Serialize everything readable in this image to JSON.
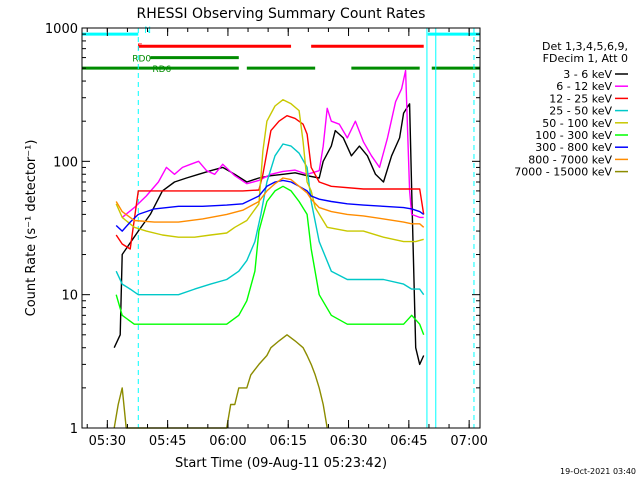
{
  "chart_data": {
    "type": "line",
    "title": "RHESSI Observing Summary Count Rates",
    "xlabel": "Start Time (09-Aug-11 05:23:42)",
    "ylabel": "Count Rate (s⁻¹ detector⁻¹)",
    "y_scale": "log",
    "ylim": [
      1,
      1000
    ],
    "xlim_minutes": [
      0,
      99
    ],
    "x_ticks": [
      {
        "t": 6.3,
        "label": "05:30"
      },
      {
        "t": 21.3,
        "label": "05:45"
      },
      {
        "t": 36.3,
        "label": "06:00"
      },
      {
        "t": 51.3,
        "label": "06:15"
      },
      {
        "t": 66.3,
        "label": "06:30"
      },
      {
        "t": 81.3,
        "label": "06:45"
      },
      {
        "t": 96.3,
        "label": "07:00"
      }
    ],
    "y_ticks": [
      {
        "v": 1,
        "label": "1"
      },
      {
        "v": 10,
        "label": "10"
      },
      {
        "v": 100,
        "label": "100"
      },
      {
        "v": 1000,
        "label": "1000"
      }
    ],
    "legend_header": [
      "Det 1,3,4,5,6,9,",
      "FDecim 1, Att 0"
    ],
    "legend_placement": "right",
    "series": [
      {
        "name": "3 - 6 keV",
        "color": "#000000",
        "points": [
          [
            8,
            4
          ],
          [
            9.5,
            5
          ],
          [
            10,
            20
          ],
          [
            14,
            30
          ],
          [
            17,
            40
          ],
          [
            20,
            60
          ],
          [
            23,
            70
          ],
          [
            26,
            75
          ],
          [
            29,
            80
          ],
          [
            32,
            85
          ],
          [
            35,
            90
          ],
          [
            38,
            80
          ],
          [
            41,
            70
          ],
          [
            44,
            75
          ],
          [
            47,
            78
          ],
          [
            50,
            80
          ],
          [
            53,
            82
          ],
          [
            56,
            78
          ],
          [
            59,
            75
          ],
          [
            60,
            100
          ],
          [
            62,
            130
          ],
          [
            63,
            170
          ],
          [
            65,
            150
          ],
          [
            67,
            110
          ],
          [
            69,
            130
          ],
          [
            71,
            110
          ],
          [
            73,
            80
          ],
          [
            75,
            70
          ],
          [
            77,
            110
          ],
          [
            79,
            150
          ],
          [
            80,
            230
          ],
          [
            81.5,
            270
          ],
          [
            82,
            60
          ],
          [
            83,
            4
          ],
          [
            84,
            3
          ],
          [
            85,
            3.5
          ]
        ]
      },
      {
        "name": "6 - 12 keV",
        "color": "#ff00ff",
        "points": [
          [
            10,
            38
          ],
          [
            13,
            45
          ],
          [
            16,
            55
          ],
          [
            19,
            70
          ],
          [
            21,
            90
          ],
          [
            23,
            80
          ],
          [
            25,
            90
          ],
          [
            27,
            95
          ],
          [
            29,
            100
          ],
          [
            31,
            85
          ],
          [
            33,
            80
          ],
          [
            35,
            95
          ],
          [
            38,
            78
          ],
          [
            41,
            68
          ],
          [
            44,
            72
          ],
          [
            47,
            80
          ],
          [
            50,
            84
          ],
          [
            53,
            86
          ],
          [
            56,
            80
          ],
          [
            59,
            85
          ],
          [
            60,
            130
          ],
          [
            61,
            250
          ],
          [
            62,
            200
          ],
          [
            64,
            190
          ],
          [
            66,
            150
          ],
          [
            68,
            200
          ],
          [
            70,
            140
          ],
          [
            72,
            110
          ],
          [
            74,
            90
          ],
          [
            76,
            150
          ],
          [
            78,
            280
          ],
          [
            79.5,
            350
          ],
          [
            80.5,
            480
          ],
          [
            81.5,
            60
          ],
          [
            82,
            40
          ],
          [
            84,
            38
          ],
          [
            85,
            38
          ]
        ]
      },
      {
        "name": "12 - 25 keV",
        "color": "#ff0000",
        "points": [
          [
            8.5,
            28
          ],
          [
            10,
            24
          ],
          [
            12,
            22
          ],
          [
            14,
            60
          ],
          [
            20,
            60
          ],
          [
            30,
            60
          ],
          [
            40,
            60
          ],
          [
            44,
            61
          ],
          [
            45,
            80
          ],
          [
            47,
            170
          ],
          [
            49,
            200
          ],
          [
            51,
            220
          ],
          [
            53,
            210
          ],
          [
            55,
            190
          ],
          [
            56,
            160
          ],
          [
            57,
            90
          ],
          [
            59,
            70
          ],
          [
            62,
            65
          ],
          [
            70,
            62
          ],
          [
            80,
            62
          ],
          [
            82,
            62
          ],
          [
            84,
            62
          ],
          [
            85,
            40
          ]
        ]
      },
      {
        "name": "25 - 50 keV",
        "color": "#00c8c8",
        "points": [
          [
            8.5,
            15
          ],
          [
            10,
            12
          ],
          [
            12,
            11
          ],
          [
            14,
            10
          ],
          [
            18,
            10
          ],
          [
            24,
            10
          ],
          [
            28,
            11
          ],
          [
            32,
            12
          ],
          [
            36,
            13
          ],
          [
            39,
            15
          ],
          [
            41,
            18
          ],
          [
            43,
            25
          ],
          [
            44.5,
            40
          ],
          [
            46,
            70
          ],
          [
            48,
            110
          ],
          [
            50,
            135
          ],
          [
            52,
            130
          ],
          [
            54,
            115
          ],
          [
            56,
            90
          ],
          [
            57,
            50
          ],
          [
            59,
            25
          ],
          [
            62,
            15
          ],
          [
            66,
            13
          ],
          [
            70,
            13
          ],
          [
            75,
            13
          ],
          [
            80,
            12
          ],
          [
            82,
            11
          ],
          [
            84,
            11
          ],
          [
            85,
            10
          ]
        ]
      },
      {
        "name": "50 - 100 keV",
        "color": "#c8c800",
        "points": [
          [
            8.5,
            48
          ],
          [
            10,
            38
          ],
          [
            13,
            32
          ],
          [
            16,
            30
          ],
          [
            20,
            28
          ],
          [
            24,
            27
          ],
          [
            28,
            27
          ],
          [
            32,
            28
          ],
          [
            36,
            29
          ],
          [
            38,
            32
          ],
          [
            41,
            36
          ],
          [
            44,
            48
          ],
          [
            45,
            120
          ],
          [
            46,
            200
          ],
          [
            48,
            260
          ],
          [
            50,
            290
          ],
          [
            52,
            270
          ],
          [
            54,
            240
          ],
          [
            55,
            140
          ],
          [
            56,
            70
          ],
          [
            57,
            60
          ],
          [
            58,
            45
          ],
          [
            61,
            32
          ],
          [
            66,
            30
          ],
          [
            70,
            30
          ],
          [
            75,
            27
          ],
          [
            80,
            25
          ],
          [
            83,
            25
          ],
          [
            85,
            26
          ]
        ]
      },
      {
        "name": "100 - 300 keV",
        "color": "#00ff00",
        "points": [
          [
            8.5,
            10
          ],
          [
            10,
            7
          ],
          [
            13,
            6
          ],
          [
            18,
            6
          ],
          [
            24,
            6
          ],
          [
            30,
            6
          ],
          [
            36,
            6
          ],
          [
            39,
            7
          ],
          [
            41,
            9
          ],
          [
            43,
            15
          ],
          [
            44,
            30
          ],
          [
            46,
            50
          ],
          [
            48,
            60
          ],
          [
            50,
            65
          ],
          [
            52,
            60
          ],
          [
            54,
            50
          ],
          [
            56,
            40
          ],
          [
            57,
            22
          ],
          [
            59,
            10
          ],
          [
            62,
            7
          ],
          [
            66,
            6
          ],
          [
            70,
            6
          ],
          [
            75,
            6
          ],
          [
            80,
            6
          ],
          [
            82,
            7
          ],
          [
            84,
            6
          ],
          [
            85,
            5
          ]
        ]
      },
      {
        "name": "300 - 800 keV",
        "color": "#0000ff",
        "points": [
          [
            8.5,
            33
          ],
          [
            10,
            30
          ],
          [
            12,
            35
          ],
          [
            14,
            40
          ],
          [
            18,
            44
          ],
          [
            24,
            46
          ],
          [
            30,
            46
          ],
          [
            36,
            47
          ],
          [
            40,
            48
          ],
          [
            44,
            55
          ],
          [
            46,
            65
          ],
          [
            48,
            70
          ],
          [
            50,
            72
          ],
          [
            52,
            70
          ],
          [
            54,
            65
          ],
          [
            56,
            60
          ],
          [
            57,
            55
          ],
          [
            59,
            52
          ],
          [
            62,
            50
          ],
          [
            66,
            48
          ],
          [
            70,
            47
          ],
          [
            75,
            46
          ],
          [
            80,
            45
          ],
          [
            82,
            44
          ],
          [
            84,
            42
          ],
          [
            85,
            40
          ]
        ]
      },
      {
        "name": "800 - 7000 keV",
        "color": "#ff8c00",
        "points": [
          [
            8.5,
            50
          ],
          [
            10,
            42
          ],
          [
            13,
            36
          ],
          [
            18,
            35
          ],
          [
            24,
            35
          ],
          [
            30,
            37
          ],
          [
            36,
            40
          ],
          [
            40,
            43
          ],
          [
            44,
            50
          ],
          [
            46,
            60
          ],
          [
            48,
            68
          ],
          [
            50,
            75
          ],
          [
            52,
            73
          ],
          [
            54,
            65
          ],
          [
            56,
            58
          ],
          [
            57,
            52
          ],
          [
            59,
            45
          ],
          [
            62,
            42
          ],
          [
            66,
            40
          ],
          [
            70,
            39
          ],
          [
            75,
            37
          ],
          [
            80,
            35
          ],
          [
            82,
            34
          ],
          [
            84,
            34
          ],
          [
            85,
            32
          ]
        ]
      },
      {
        "name": "7000 - 15000 keV",
        "color": "#8c8c00",
        "points": [
          [
            8,
            1
          ],
          [
            9,
            1.5
          ],
          [
            10,
            2
          ],
          [
            11,
            1
          ],
          [
            36,
            1
          ],
          [
            37,
            1.5
          ],
          [
            38,
            1.5
          ],
          [
            39,
            2
          ],
          [
            41,
            2
          ],
          [
            42,
            2.5
          ],
          [
            44,
            3
          ],
          [
            46,
            3.5
          ],
          [
            47,
            4
          ],
          [
            49,
            4.5
          ],
          [
            51,
            5
          ],
          [
            53,
            4.5
          ],
          [
            55,
            4
          ],
          [
            56,
            3.5
          ],
          [
            57,
            3
          ],
          [
            58,
            2.5
          ],
          [
            59,
            2
          ],
          [
            60,
            1.5
          ],
          [
            61,
            1
          ]
        ]
      }
    ],
    "top_bars": [
      {
        "label": "N",
        "color": "#00ffff",
        "level": 900,
        "segments": [
          [
            0,
            14
          ],
          [
            86,
            99
          ]
        ]
      },
      {
        "label": "F",
        "color": "#ff0000",
        "level": 730,
        "segments": [
          [
            14,
            52
          ],
          [
            57,
            85
          ]
        ]
      },
      {
        "label": "RD0",
        "color": "#008c00",
        "level": 600,
        "segments": [
          [
            17,
            39
          ]
        ]
      },
      {
        "label": "RD6",
        "color": "#008c00",
        "level": 500,
        "segments": [
          [
            0,
            39
          ],
          [
            41,
            58
          ],
          [
            67,
            84
          ],
          [
            87,
            99
          ]
        ]
      }
    ],
    "vlines": [
      {
        "t": 14,
        "color": "#00ffff",
        "dashed": true
      },
      {
        "t": 85.8,
        "color": "#00ffff",
        "dashed": false
      },
      {
        "t": 88,
        "color": "#00ffff",
        "dashed": false
      },
      {
        "t": 97.5,
        "color": "#00ffff",
        "dashed": true
      }
    ],
    "footer_timestamp": "19-Oct-2021 03:40"
  }
}
